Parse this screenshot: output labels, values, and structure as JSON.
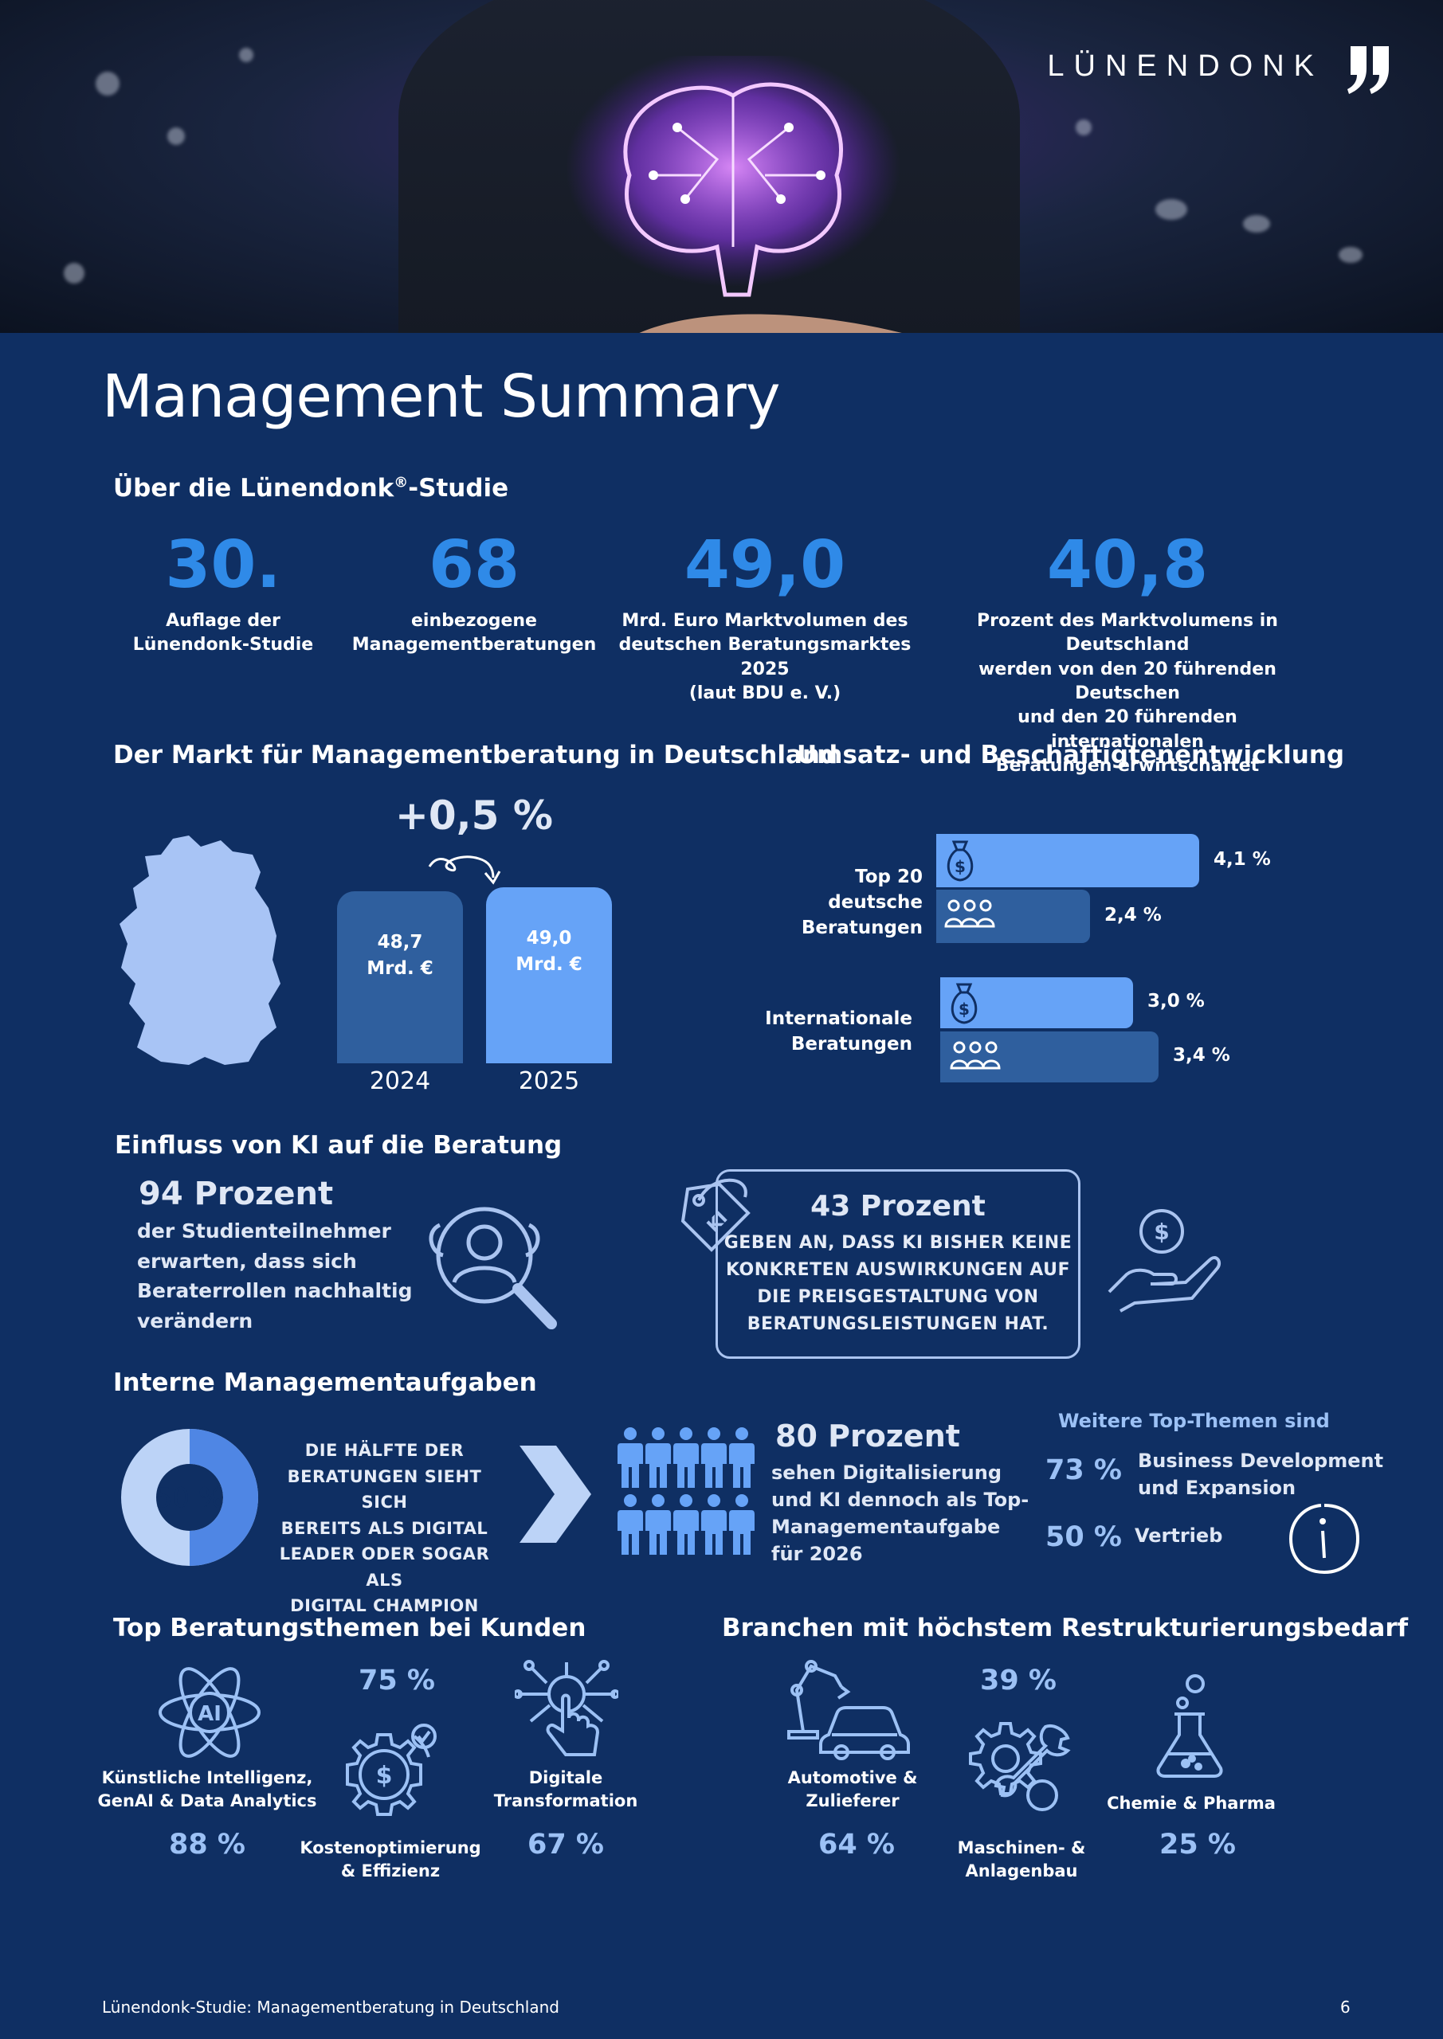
{
  "logo": {
    "text": "LÜNENDONK"
  },
  "title": "Management Summary",
  "about": {
    "heading_pre": "Über die Lünendonk",
    "heading_sup": "®",
    "heading_post": "-Studie",
    "stats": [
      {
        "value": "30.",
        "caption_lines": [
          "Auflage der",
          "Lünendonk-Studie"
        ]
      },
      {
        "value": "68",
        "caption_lines": [
          "einbezogene",
          "Managementberatungen"
        ]
      },
      {
        "value": "49,0",
        "caption_lines": [
          "Mrd. Euro Marktvolumen des",
          "deutschen Beratungsmarktes 2025",
          "(laut BDU e. V.)"
        ]
      },
      {
        "value": "40,8",
        "caption_lines": [
          "Prozent des Marktvolumens in Deutschland",
          "werden von den 20 führenden Deutschen",
          "und den 20 führenden internationalen",
          "Beratungen erwirtschaftet"
        ]
      }
    ]
  },
  "market": {
    "heading": "Der Markt für Managementberatung in Deutschland",
    "growth": "+0,5 %",
    "bars": [
      {
        "year": "2024",
        "value": 48.7,
        "label_value": "48,7",
        "label_unit": "Mrd. €",
        "color": "#2f5f9e"
      },
      {
        "year": "2025",
        "value": 49.0,
        "label_value": "49,0",
        "label_unit": "Mrd. €",
        "color": "#66a3f7"
      }
    ]
  },
  "development": {
    "heading": "Umsatz- und Beschäftigtenentwicklung",
    "groups": [
      {
        "label_lines": [
          "Top 20",
          "deutsche Beratungen"
        ],
        "revenue": 4.1,
        "revenue_label": "4,1 %",
        "employees": 2.4,
        "employees_label": "2,4 %"
      },
      {
        "label_lines": [
          "Internationale",
          "Beratungen"
        ],
        "revenue": 3.0,
        "revenue_label": "3,0 %",
        "employees": 3.4,
        "employees_label": "3,4 %"
      }
    ],
    "colors": {
      "revenue": "#66a3f7",
      "employees": "#2f5f9e"
    }
  },
  "ki": {
    "heading": "Einfluss von KI auf die Beratung",
    "left_title": "94 Prozent",
    "left_lines": [
      "der Studienteilnehmer",
      "erwarten, dass sich",
      "Beraterrollen nachhaltig",
      "verändern"
    ],
    "tag_text": "KI",
    "box_title": "43 Prozent",
    "box_lines": [
      "GEBEN AN, DASS KI BISHER KEINE",
      "KONKRETEN AUSWIRKUNGEN AUF",
      "DIE PREISGESTALTUNG VON",
      "BERATUNGSLEISTUNGEN HAT."
    ]
  },
  "internal": {
    "heading": "Interne Managementaufgaben",
    "donut_label": "50 %",
    "donut_share": 0.5,
    "donut_lines": [
      "DIE HÄLFTE DER",
      "BERATUNGEN SIEHT SICH",
      "BEREITS ALS DIGITAL",
      "LEADER ODER SOGAR ALS",
      "DIGITAL CHAMPION"
    ],
    "mid_title": "80 Prozent",
    "mid_lines": [
      "sehen Digitalisierung",
      "und KI dennoch als Top-",
      "Managementaufgabe",
      "für 2026"
    ],
    "people_total": 10,
    "more_heading": "Weitere Top-Themen sind",
    "more": [
      {
        "pct": "73 %",
        "label_lines": [
          "Business Development",
          "und Expansion"
        ]
      },
      {
        "pct": "50 %",
        "label_lines": [
          "Vertrieb"
        ]
      }
    ]
  },
  "topics": {
    "heading": "Top Beratungsthemen bei Kunden",
    "items": [
      {
        "icon": "ai-atom-icon",
        "label_lines": [
          "Künstliche Intelligenz,",
          "GenAI & Data Analytics"
        ],
        "pct": "88 %"
      },
      {
        "icon": "gear-dollar-icon",
        "label_lines": [
          "Kostenoptimierung",
          "& Effizienz"
        ],
        "pct": "75 %"
      },
      {
        "icon": "digital-hand-icon",
        "label_lines": [
          "Digitale",
          "Transformation"
        ],
        "pct": "67 %"
      }
    ]
  },
  "sectors": {
    "heading": "Branchen mit höchstem Restrukturierungsbedarf",
    "items": [
      {
        "icon": "robot-car-icon",
        "label_lines": [
          "Automotive &",
          "Zulieferer"
        ],
        "pct": "64 %"
      },
      {
        "icon": "gear-wrench-icon",
        "label_lines": [
          "Maschinen- &",
          "Anlagenbau"
        ],
        "pct": "39 %"
      },
      {
        "icon": "flask-icon",
        "label_lines": [
          "Chemie & Pharma"
        ],
        "pct": "25 %"
      }
    ]
  },
  "footer": {
    "left": "Lünendonk-Studie: Managementberatung in Deutschland",
    "page": "6"
  }
}
